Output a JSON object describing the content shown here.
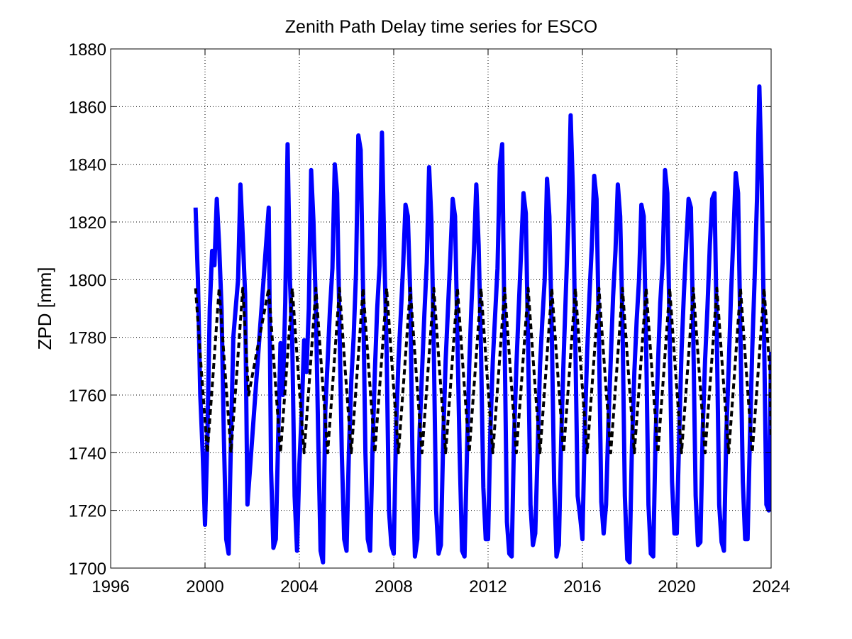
{
  "chart_data": {
    "type": "line",
    "title": "Zenith Path Delay time series for ESCO",
    "xlabel": "",
    "ylabel": "ZPD [mm]",
    "xlim": [
      1996,
      2024
    ],
    "ylim": [
      1700,
      1880
    ],
    "x_ticks": [
      1996,
      2000,
      2004,
      2008,
      2012,
      2016,
      2020,
      2024
    ],
    "x_tick_labels": [
      "1996",
      "2000",
      "2004",
      "2008",
      "2012",
      "2016",
      "2020",
      "2024"
    ],
    "y_ticks": [
      1700,
      1720,
      1740,
      1760,
      1780,
      1800,
      1820,
      1840,
      1860,
      1880
    ],
    "y_tick_labels": [
      "1700",
      "1720",
      "1740",
      "1760",
      "1780",
      "1800",
      "1820",
      "1840",
      "1860",
      "1880"
    ],
    "grid": true,
    "series": [
      {
        "style": "solid",
        "color": "#0000ff",
        "x": [
          1999.6,
          1999.7,
          1999.8,
          1999.9,
          2000.0,
          2000.1,
          2000.2,
          2000.3,
          2000.4,
          2000.5,
          2000.6,
          2000.7,
          2000.8,
          2000.9,
          2001.0,
          2001.1,
          2001.2,
          2001.3,
          2001.4,
          2001.5,
          2001.6,
          2001.7,
          2001.8,
          2002.7,
          2002.8,
          2002.9,
          2003.0,
          2003.1,
          2003.2,
          2003.3,
          2003.4,
          2003.5,
          2003.6,
          2003.7,
          2003.8,
          2003.9,
          2004.0,
          2004.1,
          2004.2,
          2004.3,
          2004.4,
          2004.5,
          2004.6,
          2004.7,
          2004.8,
          2004.9,
          2005.0,
          2005.1,
          2005.2,
          2005.3,
          2005.4,
          2005.5,
          2005.6,
          2005.7,
          2005.8,
          2005.9,
          2006.0,
          2006.1,
          2006.2,
          2006.3,
          2006.4,
          2006.5,
          2006.6,
          2006.7,
          2006.8,
          2006.9,
          2007.0,
          2007.1,
          2007.2,
          2007.3,
          2007.4,
          2007.5,
          2007.6,
          2007.7,
          2007.8,
          2007.9,
          2008.0,
          2008.1,
          2008.2,
          2008.3,
          2008.4,
          2008.5,
          2008.6,
          2008.7,
          2008.8,
          2008.9,
          2009.0,
          2009.1,
          2009.2,
          2009.3,
          2009.4,
          2009.5,
          2009.6,
          2009.7,
          2009.8,
          2009.9,
          2010.0,
          2010.1,
          2010.2,
          2010.3,
          2010.4,
          2010.5,
          2010.6,
          2010.7,
          2010.8,
          2010.9,
          2011.0,
          2011.1,
          2011.2,
          2011.3,
          2011.4,
          2011.5,
          2011.6,
          2011.7,
          2011.8,
          2011.9,
          2012.0,
          2012.1,
          2012.2,
          2012.3,
          2012.4,
          2012.5,
          2012.6,
          2012.7,
          2012.8,
          2012.9,
          2013.0,
          2013.1,
          2013.2,
          2013.3,
          2013.4,
          2013.5,
          2013.6,
          2013.7,
          2013.8,
          2013.9,
          2014.0,
          2014.1,
          2014.2,
          2014.3,
          2014.4,
          2014.5,
          2014.6,
          2014.7,
          2014.8,
          2014.9,
          2015.0,
          2015.1,
          2015.2,
          2015.3,
          2015.4,
          2015.5,
          2015.6,
          2015.7,
          2015.8,
          2015.9,
          2016.0,
          2016.1,
          2016.2,
          2016.3,
          2016.4,
          2016.5,
          2016.6,
          2016.7,
          2016.8,
          2016.9,
          2017.0,
          2017.1,
          2017.2,
          2017.3,
          2017.4,
          2017.5,
          2017.6,
          2017.7,
          2017.8,
          2017.9,
          2018.0,
          2018.1,
          2018.2,
          2018.3,
          2018.4,
          2018.5,
          2018.6,
          2018.7,
          2018.8,
          2018.9,
          2019.0,
          2019.1,
          2019.2,
          2019.3,
          2019.4,
          2019.5,
          2019.6,
          2019.7,
          2019.8,
          2019.9,
          2020.0,
          2020.1,
          2020.2,
          2020.3,
          2020.4,
          2020.5,
          2020.6,
          2020.7,
          2020.8,
          2020.9,
          2021.0,
          2021.1,
          2021.2,
          2021.3,
          2021.4,
          2021.5,
          2021.6,
          2021.7,
          2021.8,
          2021.9,
          2022.0,
          2022.1,
          2022.2,
          2022.3,
          2022.4,
          2022.5,
          2022.6,
          2022.7,
          2022.8,
          2022.9,
          2023.0,
          2023.1,
          2023.2,
          2023.3,
          2023.4,
          2023.5,
          2023.6,
          2023.7,
          2023.8,
          2023.9,
          2024.0
        ],
        "y": [
          1825,
          1800,
          1760,
          1740,
          1715,
          1745,
          1790,
          1810,
          1805,
          1828,
          1812,
          1790,
          1745,
          1710,
          1705,
          1745,
          1780,
          1790,
          1800,
          1833,
          1815,
          1795,
          1722,
          1825,
          1734,
          1707,
          1710,
          1745,
          1778,
          1760,
          1792,
          1847,
          1800,
          1778,
          1725,
          1706,
          1736,
          1754,
          1779,
          1768,
          1790,
          1838,
          1820,
          1790,
          1745,
          1706,
          1702,
          1755,
          1772,
          1790,
          1804,
          1840,
          1830,
          1785,
          1740,
          1710,
          1706,
          1740,
          1765,
          1780,
          1802,
          1850,
          1845,
          1796,
          1740,
          1710,
          1706,
          1741,
          1768,
          1790,
          1805,
          1851,
          1810,
          1775,
          1720,
          1708,
          1705,
          1748,
          1772,
          1788,
          1805,
          1826,
          1822,
          1795,
          1735,
          1704,
          1710,
          1748,
          1768,
          1788,
          1806,
          1839,
          1820,
          1776,
          1720,
          1705,
          1708,
          1745,
          1772,
          1790,
          1808,
          1828,
          1822,
          1780,
          1738,
          1706,
          1704,
          1738,
          1770,
          1792,
          1810,
          1833,
          1812,
          1776,
          1728,
          1710,
          1710,
          1748,
          1772,
          1788,
          1804,
          1840,
          1847,
          1780,
          1716,
          1705,
          1704,
          1745,
          1770,
          1790,
          1810,
          1830,
          1823,
          1776,
          1722,
          1708,
          1712,
          1740,
          1770,
          1786,
          1800,
          1835,
          1822,
          1782,
          1730,
          1704,
          1708,
          1745,
          1772,
          1796,
          1820,
          1857,
          1830,
          1778,
          1725,
          1718,
          1710,
          1748,
          1775,
          1795,
          1812,
          1836,
          1828,
          1780,
          1723,
          1712,
          1722,
          1750,
          1772,
          1794,
          1810,
          1833,
          1822,
          1785,
          1725,
          1703,
          1702,
          1742,
          1768,
          1786,
          1800,
          1826,
          1822,
          1778,
          1722,
          1705,
          1704,
          1745,
          1770,
          1792,
          1806,
          1838,
          1830,
          1780,
          1730,
          1712,
          1712,
          1745,
          1775,
          1795,
          1812,
          1828,
          1825,
          1780,
          1725,
          1708,
          1709,
          1748,
          1772,
          1790,
          1812,
          1828,
          1830,
          1780,
          1722,
          1709,
          1706,
          1746,
          1770,
          1795,
          1815,
          1837,
          1830,
          1780,
          1730,
          1710,
          1710,
          1745,
          1776,
          1800,
          1828,
          1867,
          1835,
          1782,
          1722,
          1720,
          1775
        ]
      },
      {
        "style": "dashed",
        "color": "#000000",
        "x": [
          1999.6,
          1999.85,
          2000.1,
          2000.35,
          2000.6,
          2000.85,
          2001.1,
          2001.35,
          2001.6,
          2001.85,
          2002.7,
          2002.95,
          2003.2,
          2003.45,
          2003.7,
          2003.95,
          2004.2,
          2004.45,
          2004.7,
          2004.95,
          2005.2,
          2005.45,
          2005.7,
          2005.95,
          2006.2,
          2006.45,
          2006.7,
          2006.95,
          2007.2,
          2007.45,
          2007.7,
          2007.95,
          2008.2,
          2008.45,
          2008.7,
          2008.95,
          2009.2,
          2009.45,
          2009.7,
          2009.95,
          2010.2,
          2010.45,
          2010.7,
          2010.95,
          2011.2,
          2011.45,
          2011.7,
          2011.95,
          2012.2,
          2012.45,
          2012.7,
          2012.95,
          2013.2,
          2013.45,
          2013.7,
          2013.95,
          2014.2,
          2014.45,
          2014.7,
          2014.95,
          2015.2,
          2015.45,
          2015.7,
          2015.95,
          2016.2,
          2016.45,
          2016.7,
          2016.95,
          2017.2,
          2017.45,
          2017.7,
          2017.95,
          2018.2,
          2018.45,
          2018.7,
          2018.95,
          2019.2,
          2019.45,
          2019.7,
          2019.95,
          2020.2,
          2020.45,
          2020.7,
          2020.95,
          2021.2,
          2021.45,
          2021.7,
          2021.95,
          2022.2,
          2022.45,
          2022.7,
          2022.95,
          2023.2,
          2023.45,
          2023.7,
          2023.95,
          2024.0
        ],
        "y": [
          1797,
          1768,
          1740,
          1768,
          1797,
          1768,
          1740,
          1768,
          1797,
          1760,
          1797,
          1768,
          1740,
          1768,
          1797,
          1768,
          1740,
          1768,
          1797,
          1768,
          1740,
          1768,
          1797,
          1768,
          1740,
          1768,
          1797,
          1768,
          1740,
          1768,
          1797,
          1768,
          1740,
          1768,
          1797,
          1768,
          1740,
          1768,
          1797,
          1768,
          1740,
          1768,
          1797,
          1768,
          1740,
          1768,
          1797,
          1768,
          1740,
          1768,
          1797,
          1768,
          1740,
          1768,
          1797,
          1768,
          1740,
          1768,
          1797,
          1768,
          1740,
          1768,
          1797,
          1768,
          1740,
          1768,
          1797,
          1768,
          1740,
          1768,
          1797,
          1768,
          1740,
          1768,
          1797,
          1768,
          1740,
          1768,
          1797,
          1768,
          1740,
          1768,
          1797,
          1768,
          1740,
          1768,
          1797,
          1768,
          1740,
          1768,
          1797,
          1768,
          1740,
          1768,
          1797,
          1768,
          1745
        ]
      }
    ]
  }
}
